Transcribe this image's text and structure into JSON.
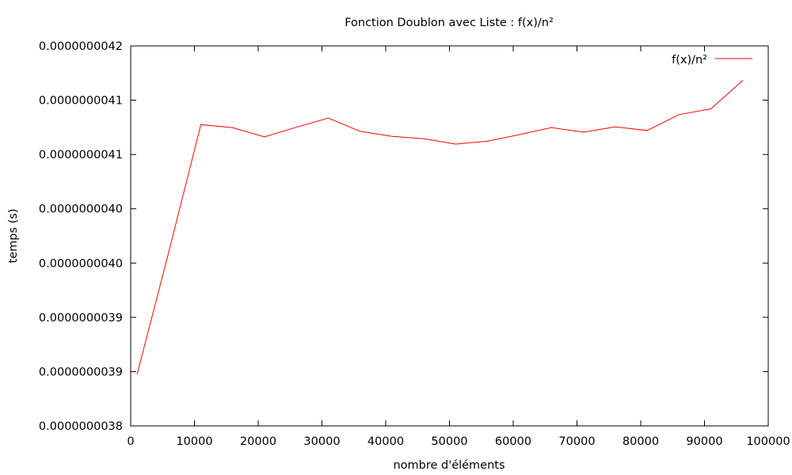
{
  "chart_data": {
    "type": "line",
    "title": "Fonction Doublon avec Liste : f(x)/n²",
    "xlabel": "nombre d'éléments",
    "ylabel": "temps (s)",
    "xlim": [
      0,
      100000
    ],
    "ylim": [
      3.8e-09,
      4.15e-09
    ],
    "x_ticks": [
      0,
      10000,
      20000,
      30000,
      40000,
      50000,
      60000,
      70000,
      80000,
      90000,
      100000
    ],
    "x_tick_labels": [
      "0",
      "10000",
      "20000",
      "30000",
      "40000",
      "50000",
      "60000",
      "70000",
      "80000",
      "90000",
      "100000"
    ],
    "y_ticks": [
      3.8e-09,
      3.85e-09,
      3.9e-09,
      3.95e-09,
      4e-09,
      4.05e-09,
      4.1e-09,
      4.15e-09
    ],
    "y_tick_labels": [
      "0.0000000038",
      "0.0000000039",
      "0.0000000039",
      "0.0000000040",
      "0.0000000040",
      "0.0000000041",
      "0.0000000041",
      "0.0000000042"
    ],
    "grid": false,
    "legend_position": "top-right",
    "series": [
      {
        "name": "f(x)/n²",
        "color": "#ff0000",
        "x": [
          1000,
          6000,
          11000,
          16000,
          21000,
          26000,
          31000,
          36000,
          41000,
          46000,
          51000,
          56000,
          61000,
          66000,
          71000,
          76000,
          81000,
          86000,
          91000,
          96000
        ],
        "y": [
          3.8475e-09,
          3.9608e-09,
          4.0775e-09,
          4.0747e-09,
          4.0663e-09,
          4.0751e-09,
          4.0835e-09,
          4.0713e-09,
          4.0667e-09,
          4.0645e-09,
          4.0596e-09,
          4.0623e-09,
          4.0683e-09,
          4.0748e-09,
          4.0705e-09,
          4.0755e-09,
          4.0721e-09,
          4.0867e-09,
          4.092e-09,
          4.1183e-09
        ]
      }
    ]
  }
}
